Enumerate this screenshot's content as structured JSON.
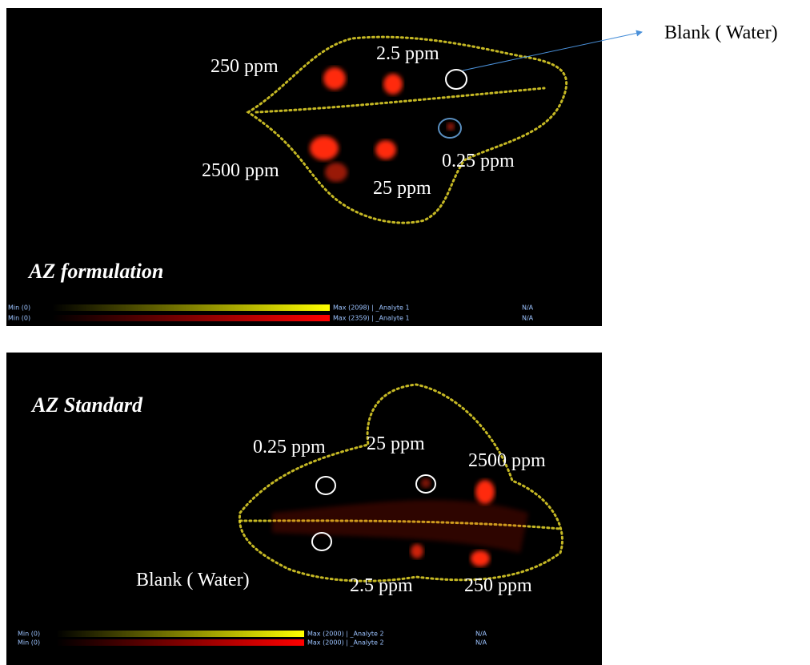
{
  "callout": "Blank ( Water)",
  "panels": [
    {
      "title": "AZ formulation",
      "labels": [
        "250 ppm",
        "2.5 ppm",
        "2500 ppm",
        "25 ppm",
        "0.25 ppm"
      ],
      "colorbars": [
        {
          "min": "Min (0)",
          "max": "Max (2098) | _Analyte 1",
          "extra": "N/A"
        },
        {
          "min": "Min (0)",
          "max": "Max (2359) | _Analyte 1",
          "extra": "N/A"
        }
      ]
    },
    {
      "title": "AZ Standard",
      "labels": [
        "0.25 ppm",
        "25 ppm",
        "2500 ppm",
        "Blank ( Water)",
        "2.5 ppm",
        "250 ppm"
      ],
      "colorbars": [
        {
          "min": "Min (0)",
          "max": "Max (2000) | _Analyte 2",
          "extra": "N/A"
        },
        {
          "min": "Min (0)",
          "max": "Max (2000) | _Analyte 2",
          "extra": "N/A"
        }
      ]
    }
  ]
}
